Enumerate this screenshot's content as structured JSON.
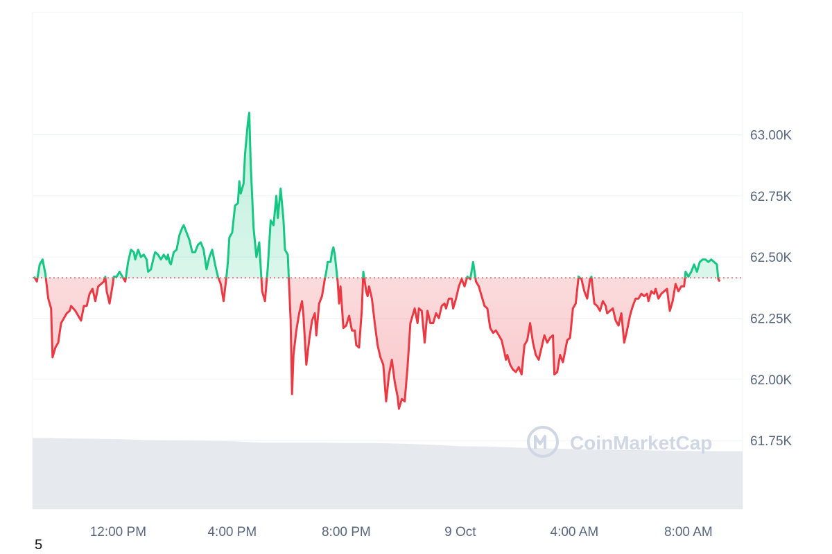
{
  "colors": {
    "up": "#16c784",
    "down": "#ea3943",
    "up_fill": "#16c784",
    "down_fill": "#ea3943",
    "grid": "#eff2f5",
    "baseline": "#ea3943",
    "volume": "#e6e9ee",
    "axis_text": "#58667e"
  },
  "watermark": {
    "text": "CoinMarketCap",
    "icon": "coinmarketcap-logo-icon"
  },
  "footnote": "5",
  "chart_data": {
    "type": "area",
    "title": "",
    "xlabel": "",
    "ylabel": "",
    "baseline": 62415,
    "ylim": [
      61470,
      63500
    ],
    "xlim": [
      9.0,
      33.9
    ],
    "x_unit": "hours since 8 Oct 00:00",
    "y_ticks": [
      {
        "value": 63000,
        "label": "63.00K"
      },
      {
        "value": 62750,
        "label": "62.75K"
      },
      {
        "value": 62500,
        "label": "62.50K"
      },
      {
        "value": 62250,
        "label": "62.25K"
      },
      {
        "value": 62000,
        "label": "62.00K"
      },
      {
        "value": 61750,
        "label": "61.75K"
      }
    ],
    "x_ticks": [
      {
        "value": 12,
        "label": "12:00 PM"
      },
      {
        "value": 16,
        "label": "4:00 PM"
      },
      {
        "value": 20,
        "label": "8:00 PM"
      },
      {
        "value": 24,
        "label": "9 Oct"
      },
      {
        "value": 28,
        "label": "4:00 AM"
      },
      {
        "value": 32,
        "label": "8:00 AM"
      }
    ],
    "series": [
      {
        "points": [
          [
            9.05,
            62420
          ],
          [
            9.15,
            62400
          ],
          [
            9.25,
            62470
          ],
          [
            9.35,
            62490
          ],
          [
            9.45,
            62430
          ],
          [
            9.55,
            62330
          ],
          [
            9.65,
            62290
          ],
          [
            9.7,
            62090
          ],
          [
            9.8,
            62130
          ],
          [
            9.9,
            62150
          ],
          [
            10.0,
            62230
          ],
          [
            10.1,
            62250
          ],
          [
            10.2,
            62270
          ],
          [
            10.3,
            62280
          ],
          [
            10.35,
            62300
          ],
          [
            10.5,
            62280
          ],
          [
            10.6,
            62260
          ],
          [
            10.7,
            62240
          ],
          [
            10.8,
            62300
          ],
          [
            10.9,
            62300
          ],
          [
            11.0,
            62350
          ],
          [
            11.1,
            62370
          ],
          [
            11.2,
            62320
          ],
          [
            11.3,
            62380
          ],
          [
            11.4,
            62390
          ],
          [
            11.5,
            62400
          ],
          [
            11.55,
            62420
          ],
          [
            11.6,
            62360
          ],
          [
            11.7,
            62310
          ],
          [
            11.8,
            62380
          ],
          [
            11.85,
            62420
          ],
          [
            11.95,
            62420
          ],
          [
            12.05,
            62440
          ],
          [
            12.15,
            62420
          ],
          [
            12.25,
            62400
          ],
          [
            12.35,
            62480
          ],
          [
            12.45,
            62530
          ],
          [
            12.55,
            62520
          ],
          [
            12.6,
            62490
          ],
          [
            12.7,
            62530
          ],
          [
            12.8,
            62500
          ],
          [
            12.9,
            62510
          ],
          [
            13.0,
            62490
          ],
          [
            13.05,
            62440
          ],
          [
            13.15,
            62450
          ],
          [
            13.25,
            62500
          ],
          [
            13.3,
            62520
          ],
          [
            13.4,
            62510
          ],
          [
            13.5,
            62490
          ],
          [
            13.6,
            62510
          ],
          [
            13.7,
            62490
          ],
          [
            13.75,
            62510
          ],
          [
            13.8,
            62480
          ],
          [
            13.85,
            62470
          ],
          [
            13.95,
            62520
          ],
          [
            14.05,
            62530
          ],
          [
            14.15,
            62590
          ],
          [
            14.25,
            62620
          ],
          [
            14.3,
            62630
          ],
          [
            14.4,
            62600
          ],
          [
            14.5,
            62570
          ],
          [
            14.6,
            62520
          ],
          [
            14.7,
            62520
          ],
          [
            14.8,
            62550
          ],
          [
            14.9,
            62560
          ],
          [
            15.0,
            62530
          ],
          [
            15.05,
            62490
          ],
          [
            15.1,
            62450
          ],
          [
            15.2,
            62500
          ],
          [
            15.3,
            62530
          ],
          [
            15.4,
            62470
          ],
          [
            15.5,
            62420
          ],
          [
            15.6,
            62390
          ],
          [
            15.7,
            62320
          ],
          [
            15.8,
            62420
          ],
          [
            15.85,
            62480
          ],
          [
            15.9,
            62580
          ],
          [
            16.0,
            62600
          ],
          [
            16.1,
            62710
          ],
          [
            16.2,
            62720
          ],
          [
            16.25,
            62810
          ],
          [
            16.3,
            62760
          ],
          [
            16.4,
            62800
          ],
          [
            16.45,
            62920
          ],
          [
            16.55,
            63050
          ],
          [
            16.6,
            63090
          ],
          [
            16.65,
            62880
          ],
          [
            16.75,
            62620
          ],
          [
            16.85,
            62500
          ],
          [
            16.95,
            62560
          ],
          [
            17.05,
            62360
          ],
          [
            17.15,
            62320
          ],
          [
            17.25,
            62460
          ],
          [
            17.35,
            62650
          ],
          [
            17.45,
            62630
          ],
          [
            17.55,
            62750
          ],
          [
            17.6,
            62660
          ],
          [
            17.7,
            62780
          ],
          [
            17.8,
            62650
          ],
          [
            17.85,
            62530
          ],
          [
            17.95,
            62510
          ],
          [
            18.05,
            62240
          ],
          [
            18.1,
            61940
          ],
          [
            18.15,
            62100
          ],
          [
            18.25,
            62200
          ],
          [
            18.35,
            62270
          ],
          [
            18.45,
            62320
          ],
          [
            18.5,
            62260
          ],
          [
            18.6,
            62060
          ],
          [
            18.7,
            62160
          ],
          [
            18.8,
            62240
          ],
          [
            18.9,
            62270
          ],
          [
            18.95,
            62180
          ],
          [
            19.05,
            62310
          ],
          [
            19.15,
            62340
          ],
          [
            19.25,
            62410
          ],
          [
            19.3,
            62440
          ],
          [
            19.35,
            62480
          ],
          [
            19.45,
            62480
          ],
          [
            19.5,
            62520
          ],
          [
            19.55,
            62540
          ],
          [
            19.6,
            62510
          ],
          [
            19.7,
            62400
          ],
          [
            19.75,
            62310
          ],
          [
            19.8,
            62380
          ],
          [
            19.9,
            62210
          ],
          [
            20.0,
            62220
          ],
          [
            20.1,
            62260
          ],
          [
            20.2,
            62200
          ],
          [
            20.3,
            62200
          ],
          [
            20.35,
            62140
          ],
          [
            20.45,
            62130
          ],
          [
            20.55,
            62290
          ],
          [
            20.6,
            62440
          ],
          [
            20.7,
            62360
          ],
          [
            20.75,
            62340
          ],
          [
            20.8,
            62380
          ],
          [
            20.9,
            62330
          ],
          [
            21.0,
            62230
          ],
          [
            21.1,
            62140
          ],
          [
            21.2,
            62090
          ],
          [
            21.3,
            62060
          ],
          [
            21.4,
            61910
          ],
          [
            21.5,
            62020
          ],
          [
            21.6,
            62080
          ],
          [
            21.7,
            61990
          ],
          [
            21.8,
            61930
          ],
          [
            21.85,
            61880
          ],
          [
            21.95,
            61920
          ],
          [
            22.05,
            61910
          ],
          [
            22.15,
            62050
          ],
          [
            22.25,
            62230
          ],
          [
            22.3,
            62250
          ],
          [
            22.4,
            62290
          ],
          [
            22.5,
            62230
          ],
          [
            22.55,
            62290
          ],
          [
            22.65,
            62280
          ],
          [
            22.75,
            62150
          ],
          [
            22.85,
            62280
          ],
          [
            22.95,
            62230
          ],
          [
            23.05,
            62230
          ],
          [
            23.15,
            62270
          ],
          [
            23.25,
            62250
          ],
          [
            23.35,
            62300
          ],
          [
            23.45,
            62310
          ],
          [
            23.5,
            62290
          ],
          [
            23.6,
            62330
          ],
          [
            23.7,
            62330
          ],
          [
            23.75,
            62290
          ],
          [
            23.85,
            62330
          ],
          [
            23.95,
            62380
          ],
          [
            24.05,
            62410
          ],
          [
            24.15,
            62380
          ],
          [
            24.25,
            62420
          ],
          [
            24.35,
            62410
          ],
          [
            24.45,
            62480
          ],
          [
            24.55,
            62400
          ],
          [
            24.65,
            62380
          ],
          [
            24.75,
            62340
          ],
          [
            24.85,
            62300
          ],
          [
            24.95,
            62290
          ],
          [
            25.05,
            62210
          ],
          [
            25.15,
            62190
          ],
          [
            25.25,
            62200
          ],
          [
            25.35,
            62180
          ],
          [
            25.45,
            62160
          ],
          [
            25.55,
            62110
          ],
          [
            25.6,
            62080
          ],
          [
            25.65,
            62100
          ],
          [
            25.75,
            62060
          ],
          [
            25.85,
            62040
          ],
          [
            25.95,
            62030
          ],
          [
            26.05,
            62050
          ],
          [
            26.15,
            62020
          ],
          [
            26.25,
            62140
          ],
          [
            26.35,
            62160
          ],
          [
            26.45,
            62230
          ],
          [
            26.55,
            62150
          ],
          [
            26.65,
            62100
          ],
          [
            26.75,
            62080
          ],
          [
            26.85,
            62130
          ],
          [
            26.95,
            62180
          ],
          [
            27.05,
            62150
          ],
          [
            27.15,
            62170
          ],
          [
            27.25,
            62180
          ],
          [
            27.3,
            62020
          ],
          [
            27.4,
            62030
          ],
          [
            27.5,
            62100
          ],
          [
            27.6,
            62070
          ],
          [
            27.65,
            62100
          ],
          [
            27.75,
            62160
          ],
          [
            27.85,
            62170
          ],
          [
            27.95,
            62290
          ],
          [
            28.05,
            62310
          ],
          [
            28.15,
            62420
          ],
          [
            28.25,
            62410
          ],
          [
            28.35,
            62360
          ],
          [
            28.45,
            62330
          ],
          [
            28.55,
            62410
          ],
          [
            28.6,
            62420
          ],
          [
            28.7,
            62310
          ],
          [
            28.8,
            62300
          ],
          [
            28.9,
            62280
          ],
          [
            29.0,
            62320
          ],
          [
            29.1,
            62300
          ],
          [
            29.15,
            62270
          ],
          [
            29.25,
            62280
          ],
          [
            29.35,
            62290
          ],
          [
            29.45,
            62240
          ],
          [
            29.55,
            62220
          ],
          [
            29.65,
            62270
          ],
          [
            29.75,
            62150
          ],
          [
            29.85,
            62200
          ],
          [
            29.95,
            62260
          ],
          [
            30.05,
            62300
          ],
          [
            30.15,
            62330
          ],
          [
            30.25,
            62330
          ],
          [
            30.35,
            62350
          ],
          [
            30.45,
            62340
          ],
          [
            30.55,
            62350
          ],
          [
            30.6,
            62320
          ],
          [
            30.7,
            62360
          ],
          [
            30.8,
            62350
          ],
          [
            30.85,
            62370
          ],
          [
            30.95,
            62330
          ],
          [
            31.05,
            62350
          ],
          [
            31.15,
            62360
          ],
          [
            31.25,
            62370
          ],
          [
            31.35,
            62280
          ],
          [
            31.45,
            62320
          ],
          [
            31.55,
            62390
          ],
          [
            31.65,
            62360
          ],
          [
            31.75,
            62380
          ],
          [
            31.85,
            62380
          ],
          [
            31.9,
            62440
          ],
          [
            32.0,
            62420
          ],
          [
            32.1,
            62440
          ],
          [
            32.2,
            62470
          ],
          [
            32.3,
            62440
          ],
          [
            32.4,
            62480
          ],
          [
            32.5,
            62490
          ],
          [
            32.6,
            62490
          ],
          [
            32.7,
            62480
          ],
          [
            32.8,
            62490
          ],
          [
            32.9,
            62480
          ],
          [
            33.0,
            62470
          ],
          [
            33.05,
            62410
          ],
          [
            33.1,
            62400
          ]
        ]
      }
    ],
    "volume": [
      [
        9.0,
        0.995
      ],
      [
        9.5,
        0.995
      ],
      [
        10.0,
        0.99
      ],
      [
        11.0,
        0.985
      ],
      [
        12.0,
        0.98
      ],
      [
        13.0,
        0.965
      ],
      [
        14.0,
        0.96
      ],
      [
        15.0,
        0.955
      ],
      [
        16.0,
        0.95
      ],
      [
        17.0,
        0.93
      ],
      [
        18.0,
        0.93
      ],
      [
        19.0,
        0.93
      ],
      [
        20.0,
        0.925
      ],
      [
        21.0,
        0.925
      ],
      [
        22.0,
        0.915
      ],
      [
        23.0,
        0.9
      ],
      [
        24.0,
        0.88
      ],
      [
        25.0,
        0.875
      ],
      [
        26.0,
        0.86
      ],
      [
        27.0,
        0.85
      ],
      [
        28.0,
        0.84
      ],
      [
        29.0,
        0.83
      ],
      [
        30.0,
        0.825
      ],
      [
        31.0,
        0.82
      ],
      [
        32.0,
        0.815
      ],
      [
        33.0,
        0.81
      ],
      [
        33.9,
        0.81
      ]
    ]
  }
}
